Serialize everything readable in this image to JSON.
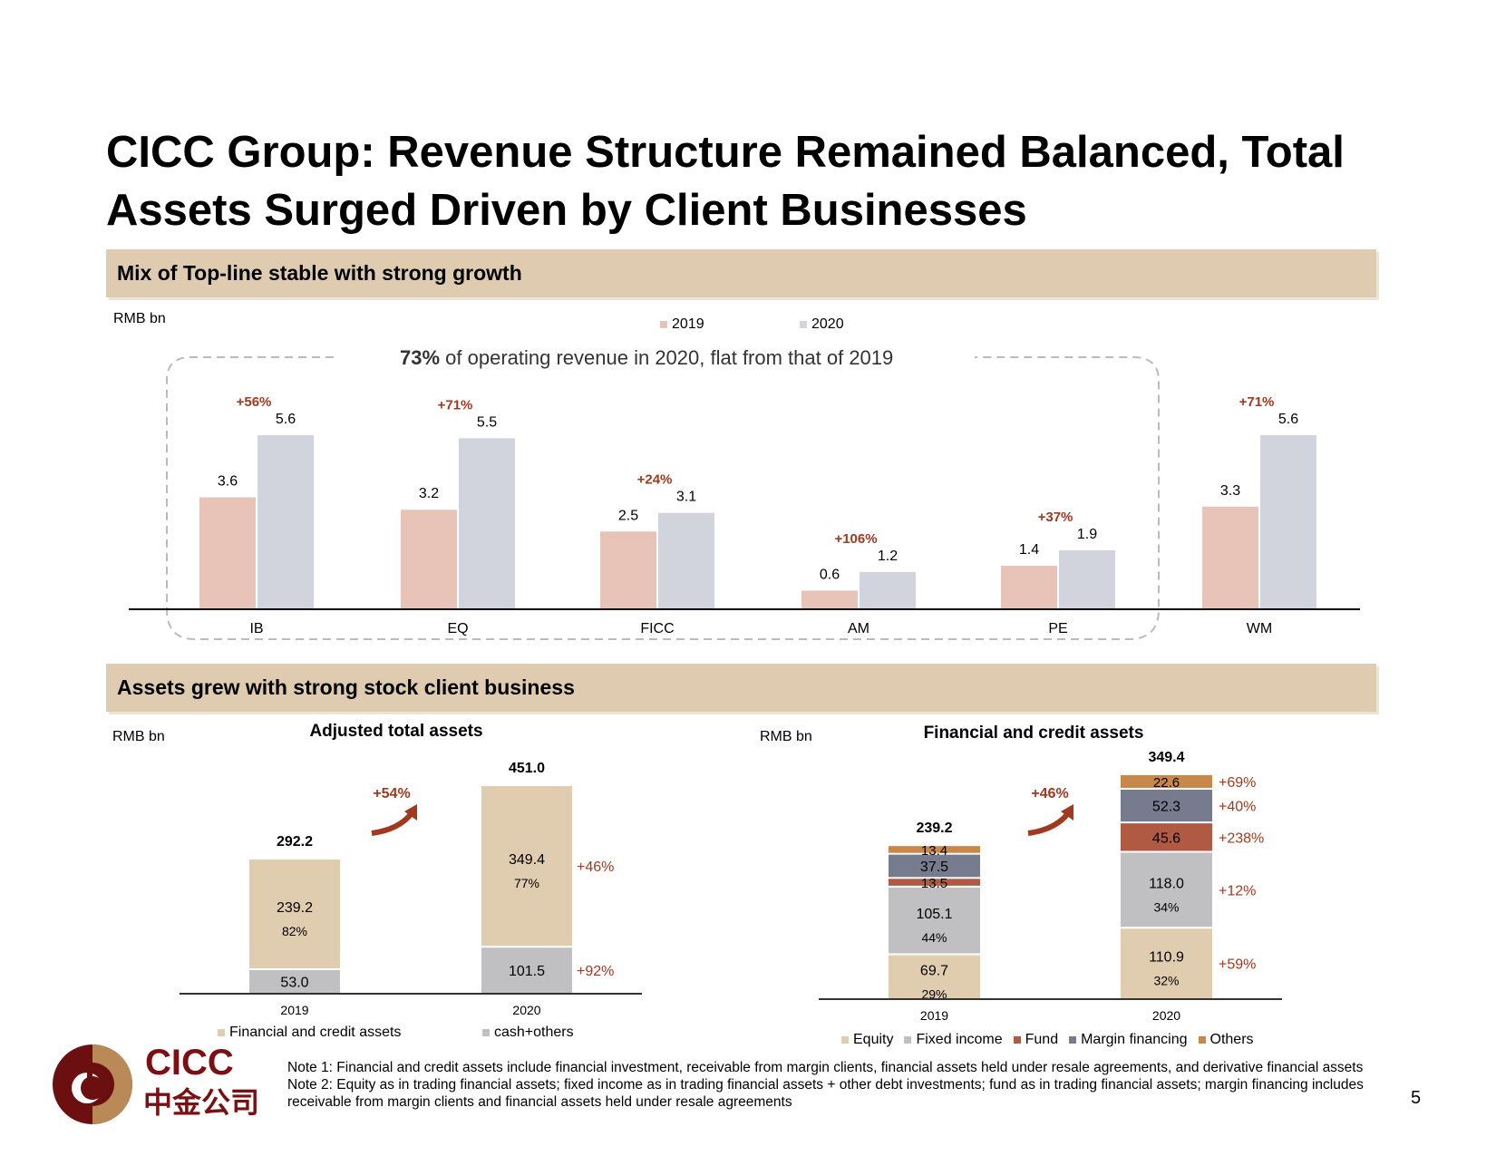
{
  "title": "CICC Group: Revenue Structure Remained Balanced, Total Assets Surged Driven by Client Businesses",
  "section1": {
    "heading": "Mix of Top-line stable with strong growth",
    "unit": "RMB bn",
    "annotation_bold": "73%",
    "annotation_text": " of operating revenue in 2020, flat from that of 2019"
  },
  "section2": {
    "heading": "Assets grew with strong stock client business"
  },
  "colors": {
    "accent_red": "#a0391e",
    "band": "#dfcbb0",
    "rev2019": "#e8c3b8",
    "rev2020": "#d1d4dc",
    "equity": "#e0cdb0",
    "fixed_income": "#c0c0c2",
    "fund": "#b05a44",
    "margin": "#767b8d",
    "others": "#c9884a"
  },
  "chart_data": [
    {
      "type": "bar",
      "title": "",
      "ylabel": "RMB bn",
      "categories": [
        "IB",
        "EQ",
        "FICC",
        "AM",
        "PE",
        "WM"
      ],
      "series": [
        {
          "name": "2019",
          "values": [
            "3.6",
            "3.2",
            "2.5",
            "0.6",
            "1.4",
            "3.3"
          ]
        },
        {
          "name": "2020",
          "values": [
            "5.6",
            "5.5",
            "3.1",
            "1.2",
            "1.9",
            "5.6"
          ]
        }
      ],
      "growth": [
        "+56%",
        "+71%",
        "+24%",
        "+106%",
        "+37%",
        "+71%"
      ]
    },
    {
      "type": "bar",
      "stacked": true,
      "title": "Adjusted total assets",
      "ylabel": "RMB bn",
      "categories": [
        "2019",
        "2020"
      ],
      "totals": [
        "292.2",
        "451.0"
      ],
      "overall_growth": "+54%",
      "series": [
        {
          "name": "cash+others",
          "values": [
            "53.0",
            "101.5"
          ],
          "shares": [
            "",
            ""
          ],
          "growth": "+92%"
        },
        {
          "name": "Financial and credit assets",
          "values": [
            "239.2",
            "349.4"
          ],
          "shares": [
            "82%",
            "77%"
          ],
          "growth": "+46%"
        }
      ],
      "legend": [
        "Financial and credit assets",
        "cash+others"
      ]
    },
    {
      "type": "bar",
      "stacked": true,
      "title": "Financial and credit assets",
      "ylabel": "RMB bn",
      "categories": [
        "2019",
        "2020"
      ],
      "totals": [
        "239.2",
        "349.4"
      ],
      "overall_growth": "+46%",
      "series": [
        {
          "name": "Equity",
          "values": [
            "69.7",
            "110.9"
          ],
          "shares": [
            "29%",
            "32%"
          ],
          "growth": "+59%"
        },
        {
          "name": "Fixed income",
          "values": [
            "105.1",
            "118.0"
          ],
          "shares": [
            "44%",
            "34%"
          ],
          "growth": "+12%"
        },
        {
          "name": "Fund",
          "values": [
            "13.5",
            "45.6"
          ],
          "shares": [
            "",
            ""
          ],
          "growth": "+238%"
        },
        {
          "name": "Margin financing",
          "values": [
            "37.5",
            "52.3"
          ],
          "shares": [
            "",
            ""
          ],
          "growth": "+40%"
        },
        {
          "name": "Others",
          "values": [
            "13.4",
            "22.6"
          ],
          "shares": [
            "",
            ""
          ],
          "growth": "+69%"
        }
      ]
    }
  ],
  "logo": {
    "en": "CICC",
    "cn": "中金公司"
  },
  "notes": {
    "note1": "Note 1: Financial and credit assets include financial investment, receivable from margin clients, financial assets held under resale agreements, and derivative financial assets",
    "note2": "Note 2: Equity as in trading financial assets; fixed income as in trading financial assets + other debt investments; fund as in trading financial assets; margin financing includes receivable from margin clients and financial assets held under resale agreements"
  },
  "page_number": "5"
}
